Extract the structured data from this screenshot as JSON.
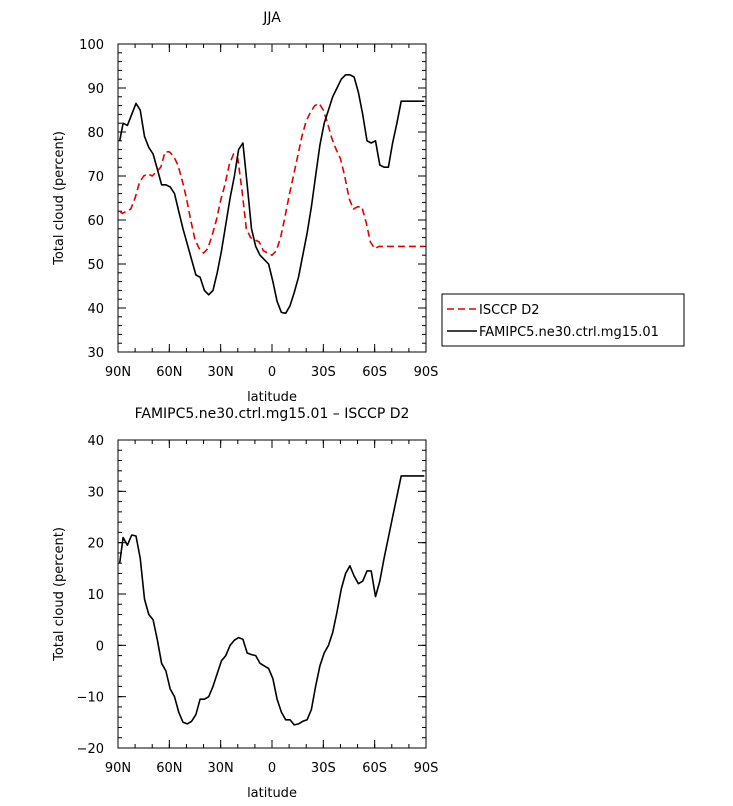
{
  "chart_data": [
    {
      "type": "line",
      "title": "JJA",
      "xlabel": "latitude",
      "ylabel": "Total cloud (percent)",
      "xlim": [
        90,
        -90
      ],
      "ylim": [
        30,
        100
      ],
      "x_ticks": [
        90,
        60,
        30,
        0,
        -30,
        -60,
        -90
      ],
      "x_tick_labels": [
        "90N",
        "60N",
        "30N",
        "0",
        "30S",
        "60S",
        "90S"
      ],
      "y_ticks": [
        30,
        40,
        50,
        60,
        70,
        80,
        90,
        100
      ],
      "y_tick_labels": [
        "30",
        "40",
        "50",
        "60",
        "70",
        "80",
        "90",
        "100"
      ],
      "legend_position": "right",
      "series": [
        {
          "name": "ISCCP D2",
          "color": "#e00000",
          "dash": "dashed",
          "x": [
            89,
            87.5,
            85,
            82.5,
            80,
            77.5,
            75,
            72.5,
            70,
            67.5,
            65,
            62.5,
            60,
            57.5,
            55,
            52.5,
            50,
            47.5,
            45,
            42.5,
            40,
            37.5,
            35,
            32.5,
            30,
            27.5,
            25,
            22.5,
            20,
            17.5,
            15,
            12.5,
            10,
            7.5,
            5,
            2.5,
            0,
            -2.5,
            -5,
            -7.5,
            -10,
            -12.5,
            -15,
            -17.5,
            -20,
            -22.5,
            -25,
            -27.5,
            -30,
            -32.5,
            -35,
            -37.5,
            -40,
            -42.5,
            -45,
            -47.5,
            -50,
            -52.5,
            -55,
            -57.5,
            -60,
            -62.5,
            -65,
            -67.5,
            -70,
            -72.5,
            -75,
            -77.5,
            -80,
            -82.5,
            -85,
            -87.5,
            -89
          ],
          "y": [
            62,
            61.5,
            62,
            62.5,
            65,
            68.5,
            70,
            70.5,
            70,
            71,
            72,
            75.5,
            75.5,
            74.5,
            72.5,
            69,
            65,
            60,
            55.5,
            53.5,
            52.5,
            53.5,
            56.5,
            60,
            64.5,
            68,
            72.5,
            75,
            74,
            66.5,
            58,
            56,
            55.5,
            55,
            53,
            52.5,
            52,
            53,
            56,
            60.5,
            65.5,
            70,
            74.5,
            79,
            82.5,
            84.5,
            86,
            86.5,
            85,
            82,
            78.5,
            76,
            74,
            70,
            65,
            62.5,
            63,
            63,
            59.5,
            55,
            53.5,
            54,
            54,
            54,
            54,
            54,
            54,
            54,
            54,
            54,
            54,
            54,
            54
          ]
        },
        {
          "name": "FAMIPC5.ne30.ctrl.mg15.01",
          "color": "#000000",
          "dash": "solid",
          "x": [
            89,
            87,
            84.5,
            82,
            79.5,
            77,
            74.5,
            72,
            69.5,
            67,
            64.5,
            62,
            59.5,
            57,
            54.5,
            52,
            49.5,
            47,
            44.5,
            42,
            39.5,
            37,
            34.5,
            32,
            29.5,
            27,
            24.5,
            22,
            19.5,
            17,
            14.5,
            12,
            9.5,
            7,
            4.5,
            2,
            -0.5,
            -3,
            -5.5,
            -8,
            -10.5,
            -13,
            -15.5,
            -18,
            -20.5,
            -23,
            -25.5,
            -28,
            -30.5,
            -33,
            -35.5,
            -38,
            -40.5,
            -43,
            -45.5,
            -48,
            -50.5,
            -53,
            -55.5,
            -58,
            -60.5,
            -63,
            -65.5,
            -68,
            -70.5,
            -73,
            -75.5,
            -78,
            -80.5,
            -83,
            -85.5,
            -88,
            -89
          ],
          "y": [
            78,
            82,
            81.5,
            84,
            86.5,
            85,
            79,
            76.5,
            75,
            71.5,
            68,
            68,
            67.5,
            66,
            62,
            58,
            54.5,
            51,
            47.5,
            47,
            44,
            43,
            44,
            48,
            53,
            59,
            65,
            70,
            76,
            77.5,
            68,
            58,
            54,
            52,
            51,
            50,
            46,
            41.5,
            39,
            38.8,
            40.5,
            43.5,
            47,
            52,
            57,
            63,
            70,
            77,
            82,
            85,
            88,
            90,
            92,
            93,
            93,
            92.5,
            89,
            84,
            78,
            77.5,
            78,
            72.5,
            72,
            72,
            77.5,
            82,
            87,
            87,
            87,
            87,
            87,
            87,
            87
          ]
        }
      ]
    },
    {
      "type": "line",
      "title": "FAMIPC5.ne30.ctrl.mg15.01 – ISCCP D2",
      "xlabel": "latitude",
      "ylabel": "Total cloud (percent)",
      "xlim": [
        90,
        -90
      ],
      "ylim": [
        -20,
        40
      ],
      "x_ticks": [
        90,
        60,
        30,
        0,
        -30,
        -60,
        -90
      ],
      "x_tick_labels": [
        "90N",
        "60N",
        "30N",
        "0",
        "30S",
        "60S",
        "90S"
      ],
      "y_ticks": [
        -20,
        -10,
        0,
        10,
        20,
        30,
        40
      ],
      "y_tick_labels": [
        "−20",
        "−10",
        "0",
        "10",
        "20",
        "30",
        "40"
      ],
      "series": [
        {
          "color": "#000000",
          "dash": "solid",
          "x": [
            89,
            87,
            84.5,
            82,
            79.5,
            77,
            74.5,
            72,
            69.5,
            67,
            64.5,
            62,
            59.5,
            57,
            54.5,
            52,
            49.5,
            47,
            44.5,
            42,
            39.5,
            37,
            34.5,
            32,
            29.5,
            27,
            24.5,
            22,
            19.5,
            17,
            14.5,
            12,
            9.5,
            7,
            4.5,
            2,
            -0.5,
            -3,
            -5.5,
            -8,
            -10.5,
            -13,
            -15.5,
            -18,
            -20.5,
            -23,
            -25.5,
            -28,
            -30.5,
            -33,
            -35.5,
            -38,
            -40.5,
            -43,
            -45.5,
            -48,
            -50.5,
            -53,
            -55.5,
            -58,
            -60.5,
            -63,
            -65.5,
            -68,
            -70.5,
            -73,
            -75.5,
            -78,
            -80.5,
            -83,
            -85.5,
            -88,
            -89
          ],
          "y": [
            16,
            21,
            19.5,
            21.5,
            21.3,
            17,
            9,
            6,
            5,
            1,
            -3.5,
            -5,
            -8.5,
            -10,
            -13,
            -15,
            -15.3,
            -14.8,
            -13.5,
            -10.5,
            -10.5,
            -10,
            -8,
            -5.5,
            -3,
            -2,
            0,
            1,
            1.5,
            1.2,
            -1.5,
            -1.8,
            -2,
            -3.5,
            -4,
            -4.5,
            -6.5,
            -10.5,
            -13,
            -14.5,
            -14.5,
            -15.5,
            -15.3,
            -14.8,
            -14.5,
            -12.5,
            -8,
            -4,
            -1.5,
            0,
            2.5,
            6.5,
            11,
            14,
            15.5,
            13.5,
            12,
            12.5,
            14.5,
            14.5,
            9.5,
            12.5,
            17,
            21,
            25,
            29,
            33,
            33,
            33,
            33,
            33,
            33,
            33
          ]
        }
      ]
    }
  ]
}
